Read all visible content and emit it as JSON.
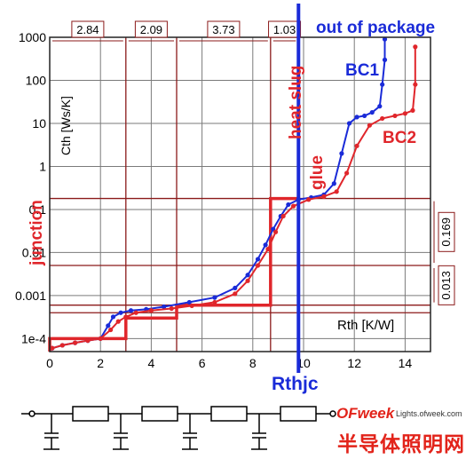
{
  "chart_data": {
    "type": "line",
    "title": "",
    "xlabel": "Rth [K/W]",
    "ylabel": "Cth [Ws/K]",
    "x_ticks": [
      "0",
      "2",
      "4",
      "6",
      "8",
      "10",
      "12",
      "14"
    ],
    "y_ticks": [
      "1e-4",
      "0.001",
      "0.01",
      "0.1",
      "1",
      "10",
      "100",
      "1000"
    ],
    "xlim": [
      0,
      15
    ],
    "ylim": [
      5e-05,
      1000
    ],
    "yscale": "log",
    "grid": true,
    "series": [
      {
        "name": "BC1",
        "color": "#1a2bd8",
        "x": [
          0.1,
          0.5,
          1.0,
          1.5,
          2.0,
          2.3,
          2.5,
          2.8,
          3.2,
          3.8,
          4.5,
          5.5,
          6.5,
          7.3,
          7.8,
          8.2,
          8.5,
          8.8,
          9.1,
          9.4,
          9.8,
          10.3,
          10.8,
          11.2,
          11.5,
          11.8,
          12.1,
          12.4,
          12.7,
          13.0,
          13.1,
          13.2,
          13.2
        ],
        "y": [
          6e-05,
          7e-05,
          8e-05,
          9e-05,
          0.0001,
          0.0002,
          0.00032,
          0.0004,
          0.00045,
          0.00048,
          0.00055,
          0.0007,
          0.0009,
          0.0015,
          0.003,
          0.007,
          0.015,
          0.035,
          0.07,
          0.13,
          0.17,
          0.19,
          0.22,
          0.4,
          2,
          10,
          14,
          15,
          18,
          25,
          80,
          300,
          900
        ]
      },
      {
        "name": "BC2",
        "color": "#e0262b",
        "x": [
          0.1,
          0.5,
          1.0,
          1.5,
          2.0,
          2.4,
          2.7,
          3.0,
          3.4,
          4.0,
          4.8,
          5.6,
          6.5,
          7.3,
          7.8,
          8.2,
          8.6,
          8.9,
          9.2,
          9.6,
          10.2,
          10.8,
          11.3,
          11.7,
          12.1,
          12.6,
          13.1,
          13.6,
          14.0,
          14.3,
          14.4,
          14.4
        ],
        "y": [
          6e-05,
          7e-05,
          8e-05,
          9e-05,
          0.0001,
          0.00016,
          0.00025,
          0.00032,
          0.0004,
          0.00045,
          0.0005,
          0.00058,
          0.0007,
          0.0011,
          0.0022,
          0.005,
          0.012,
          0.03,
          0.07,
          0.12,
          0.17,
          0.2,
          0.26,
          0.7,
          3,
          9,
          13,
          15,
          17,
          20,
          80,
          600
        ]
      },
      {
        "name": "",
        "color": "#e0262b",
        "style": "step",
        "x": [
          0,
          0,
          3.0,
          3.0,
          5.0,
          5.0,
          8.7,
          8.7,
          9.8
        ],
        "y": [
          5e-05,
          0.0001,
          0.0001,
          0.0003,
          0.0003,
          0.0006,
          0.0006,
          0.18,
          0.18
        ]
      }
    ],
    "boundary_lines": {
      "vertical_x": [
        3.0,
        5.0,
        8.7,
        9.8
      ],
      "horizontal_y": [
        0.18,
        0.005,
        0.0006,
        0.0004
      ],
      "x_segment_labels": [
        {
          "label": "2.84",
          "x_from": 0,
          "x_to": 3.0
        },
        {
          "label": "2.09",
          "x_from": 3.0,
          "x_to": 5.0
        },
        {
          "label": "3.73",
          "x_from": 5.0,
          "x_to": 8.7
        },
        {
          "label": "1.03",
          "x_from": 8.7,
          "x_to": 9.8
        }
      ],
      "y_segment_labels": [
        {
          "label": "0.169",
          "y_from": 0.18,
          "y_to": 0.005
        },
        {
          "label": "0.013",
          "y_from": 0.005,
          "y_to": 0.0006
        }
      ]
    },
    "rthjc": {
      "x": 9.8,
      "label": "Rthjc",
      "color": "#1a2bd8"
    },
    "annotations": [
      {
        "text": "out of package",
        "color": "#1a2bd8"
      },
      {
        "text": "BC1",
        "color": "#1a2bd8"
      },
      {
        "text": "BC2",
        "color": "#e0262b"
      },
      {
        "text": "heat slug",
        "color": "#e0262b"
      },
      {
        "text": "glue",
        "color": "#e0262b"
      },
      {
        "text": "junction",
        "color": "#e0262b"
      }
    ],
    "ylabel_inside": "Cth [Ws/K]",
    "xlabel_inside": "Rth [K/W]"
  },
  "circuit": {
    "resistors": 4,
    "capacitors": 4
  },
  "watermark": {
    "brand": "OFweek",
    "site": "Lights.ofweek.com",
    "cn_title": "半导体照明网"
  }
}
